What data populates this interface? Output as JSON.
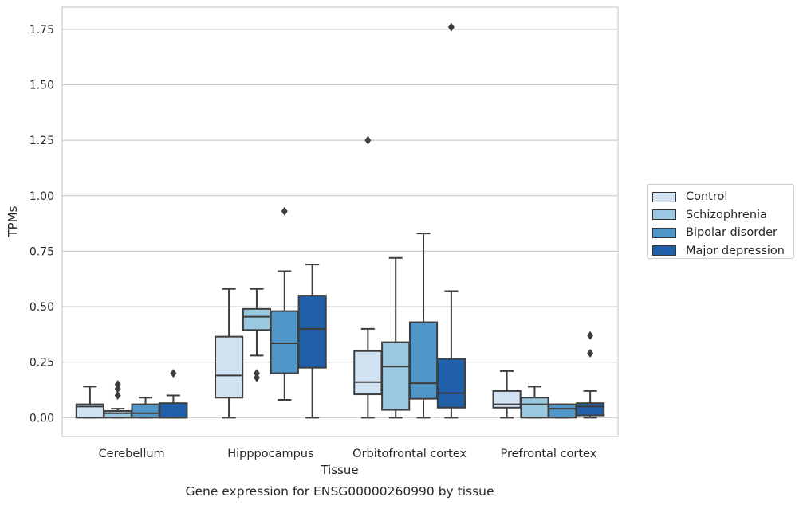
{
  "chart_data": {
    "type": "box",
    "title": "Gene expression for ENSG00000260990 by tissue",
    "xlabel": "Tissue",
    "ylabel": "TPMs",
    "ylim": [
      -0.085,
      1.85
    ],
    "yticks": [
      0.0,
      0.25,
      0.5,
      0.75,
      1.0,
      1.25,
      1.5,
      1.75
    ],
    "ytick_labels": [
      "0.00",
      "0.25",
      "0.50",
      "0.75",
      "1.00",
      "1.25",
      "1.50",
      "1.75"
    ],
    "grid": "horizontal",
    "legend_position": "right",
    "categories": [
      "Cerebellum",
      "Hipppocampus",
      "Orbitofrontal cortex",
      "Prefrontal cortex"
    ],
    "series": [
      {
        "name": "Control",
        "color": "#d1e2f2",
        "boxes": [
          {
            "whisker_low": 0.0,
            "q1": 0.0,
            "median": 0.05,
            "q3": 0.06,
            "whisker_high": 0.14,
            "outliers": []
          },
          {
            "whisker_low": 0.0,
            "q1": 0.09,
            "median": 0.19,
            "q3": 0.365,
            "whisker_high": 0.58,
            "outliers": []
          },
          {
            "whisker_low": 0.0,
            "q1": 0.105,
            "median": 0.16,
            "q3": 0.3,
            "whisker_high": 0.4,
            "outliers": [
              1.25
            ]
          },
          {
            "whisker_low": 0.0,
            "q1": 0.045,
            "median": 0.06,
            "q3": 0.12,
            "whisker_high": 0.21,
            "outliers": []
          }
        ]
      },
      {
        "name": "Schizophrenia",
        "color": "#9ac8e0",
        "boxes": [
          {
            "whisker_low": 0.0,
            "q1": 0.0,
            "median": 0.02,
            "q3": 0.03,
            "whisker_high": 0.04,
            "outliers": [
              0.1,
              0.13,
              0.15
            ]
          },
          {
            "whisker_low": 0.28,
            "q1": 0.395,
            "median": 0.455,
            "q3": 0.49,
            "whisker_high": 0.58,
            "outliers": [
              0.18,
              0.2
            ]
          },
          {
            "whisker_low": 0.0,
            "q1": 0.035,
            "median": 0.23,
            "q3": 0.34,
            "whisker_high": 0.72,
            "outliers": []
          },
          {
            "whisker_low": 0.0,
            "q1": 0.0,
            "median": 0.06,
            "q3": 0.09,
            "whisker_high": 0.14,
            "outliers": []
          }
        ]
      },
      {
        "name": "Bipolar disorder",
        "color": "#5096c9",
        "boxes": [
          {
            "whisker_low": 0.0,
            "q1": 0.0,
            "median": 0.02,
            "q3": 0.06,
            "whisker_high": 0.09,
            "outliers": []
          },
          {
            "whisker_low": 0.08,
            "q1": 0.2,
            "median": 0.335,
            "q3": 0.48,
            "whisker_high": 0.66,
            "outliers": [
              0.93
            ]
          },
          {
            "whisker_low": 0.0,
            "q1": 0.085,
            "median": 0.155,
            "q3": 0.43,
            "whisker_high": 0.83,
            "outliers": []
          },
          {
            "whisker_low": 0.0,
            "q1": 0.0,
            "median": 0.04,
            "q3": 0.06,
            "whisker_high": 0.06,
            "outliers": []
          }
        ]
      },
      {
        "name": "Major depression",
        "color": "#2060a8",
        "boxes": [
          {
            "whisker_low": 0.0,
            "q1": 0.0,
            "median": 0.0,
            "q3": 0.065,
            "whisker_high": 0.1,
            "outliers": [
              0.2
            ]
          },
          {
            "whisker_low": 0.0,
            "q1": 0.225,
            "median": 0.4,
            "q3": 0.55,
            "whisker_high": 0.69,
            "outliers": []
          },
          {
            "whisker_low": 0.0,
            "q1": 0.045,
            "median": 0.11,
            "q3": 0.265,
            "whisker_high": 0.57,
            "outliers": [
              1.76
            ]
          },
          {
            "whisker_low": 0.0,
            "q1": 0.01,
            "median": 0.05,
            "q3": 0.065,
            "whisker_high": 0.12,
            "outliers": [
              0.29,
              0.37
            ]
          }
        ]
      }
    ]
  }
}
